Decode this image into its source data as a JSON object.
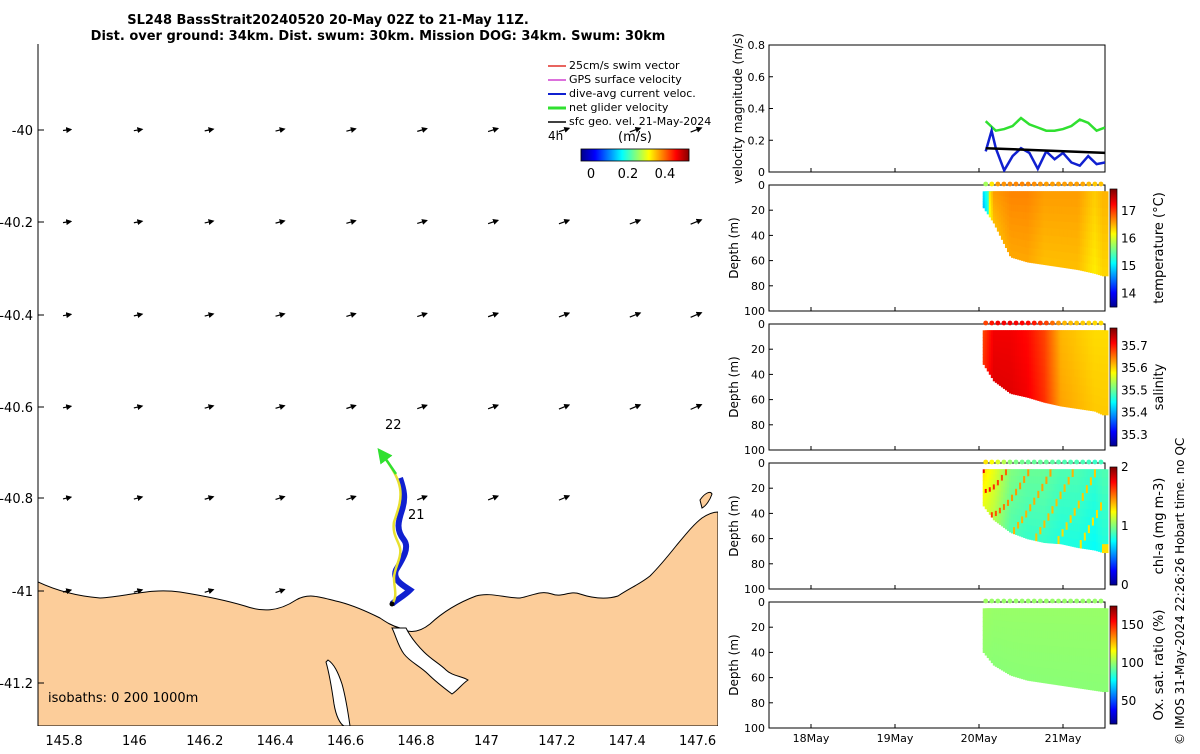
{
  "header": {
    "title_line1": "SL248 BassStrait20240520 20-May 02Z to 21-May 11Z.",
    "title_line2": "Dist. over ground: 34km. Dist. swum: 30km. Mission DOG: 34km. Swum: 30km"
  },
  "colors": {
    "land": "#fccd9a",
    "swim_vector": "#e0302a",
    "gps_velocity": "#d040d0",
    "dive_avg": "#1020d0",
    "net_glider": "#30e030",
    "sfc_geo": "#000000"
  },
  "map": {
    "lon_ticks": [
      "145.8",
      "146",
      "146.2",
      "146.4",
      "146.6",
      "146.8",
      "147",
      "147.2",
      "147.4",
      "147.6"
    ],
    "lat_ticks": [
      "-40",
      "-40.2",
      "-40.4",
      "-40.6",
      "-40.8",
      "-41",
      "-41.2"
    ],
    "isobaths_label": "isobaths: 0   200  1000m",
    "day_labels": [
      "22",
      "21"
    ],
    "legend": [
      {
        "key": "swim",
        "label": "25cm/s swim vector"
      },
      {
        "key": "gps",
        "label": "GPS surface velocity"
      },
      {
        "key": "dive",
        "label": "dive-avg current veloc."
      },
      {
        "key": "net",
        "label": "net glider velocity"
      },
      {
        "key": "sfc",
        "label": "sfc geo. vel. 21-May-2024"
      }
    ],
    "legend_time": "4h",
    "colorbar_title": "(m/s)",
    "colorbar_ticks": [
      "0",
      "0.2",
      "0.4"
    ]
  },
  "chart_data": [
    {
      "type": "line",
      "title": "velocity magnitude",
      "ylabel": "velocity magnitude (m/s)",
      "ylim": [
        0,
        0.8
      ],
      "yticks": [
        "0",
        "0.2",
        "0.4",
        "0.6",
        "0.8"
      ],
      "x_unit": "day (May 2024)",
      "xlim": [
        17.5,
        21.5
      ],
      "series": [
        {
          "name": "net glider velocity",
          "color": "#30e030",
          "x": [
            20.08,
            20.12,
            20.2,
            20.3,
            20.4,
            20.5,
            20.6,
            20.7,
            20.8,
            20.9,
            21.0,
            21.1,
            21.2,
            21.3,
            21.4,
            21.5
          ],
          "y": [
            0.32,
            0.3,
            0.26,
            0.27,
            0.29,
            0.34,
            0.3,
            0.28,
            0.26,
            0.26,
            0.27,
            0.29,
            0.33,
            0.31,
            0.26,
            0.28
          ]
        },
        {
          "name": "dive-avg current",
          "color": "#1020d0",
          "x": [
            20.08,
            20.15,
            20.2,
            20.3,
            20.4,
            20.5,
            20.6,
            20.7,
            20.8,
            20.9,
            21.0,
            21.1,
            21.2,
            21.3,
            21.4,
            21.5
          ],
          "y": [
            0.13,
            0.26,
            0.15,
            0.01,
            0.1,
            0.15,
            0.12,
            0.02,
            0.13,
            0.08,
            0.12,
            0.06,
            0.04,
            0.1,
            0.05,
            0.06
          ]
        },
        {
          "name": "sfc geo. vel.",
          "color": "#000000",
          "x": [
            20.08,
            21.5
          ],
          "y": [
            0.15,
            0.12
          ]
        }
      ]
    },
    {
      "type": "heatmap",
      "variable": "temperature",
      "ylabel": "Depth (m)",
      "colorbar_label": "temperature (°C)",
      "colorbar_ticks": [
        "14",
        "15",
        "16",
        "17"
      ],
      "crange": [
        13.5,
        17.8
      ],
      "ylim": [
        0,
        100
      ],
      "yticks": [
        "0",
        "20",
        "40",
        "60",
        "80",
        "100"
      ],
      "xlim": [
        17.5,
        21.5
      ],
      "x": [
        20.08,
        20.2,
        20.4,
        20.6,
        20.8,
        21.0,
        21.2,
        21.4,
        21.5
      ],
      "bottom_depth_m": [
        18,
        30,
        57,
        61,
        63,
        65,
        67,
        70,
        72
      ],
      "surface_values": [
        15.8,
        16.6,
        16.7,
        16.7,
        16.6,
        16.6,
        16.6,
        16.4,
        16.5
      ]
    },
    {
      "type": "heatmap",
      "variable": "salinity",
      "ylabel": "Depth (m)",
      "colorbar_label": "salinity",
      "colorbar_ticks": [
        "35.3",
        "35.4",
        "35.5",
        "35.6",
        "35.7"
      ],
      "crange": [
        35.25,
        35.78
      ],
      "ylim": [
        0,
        100
      ],
      "yticks": [
        "0",
        "20",
        "40",
        "60",
        "80",
        "100"
      ],
      "xlim": [
        17.5,
        21.5
      ],
      "x": [
        20.08,
        20.2,
        20.4,
        20.6,
        20.8,
        21.0,
        21.2,
        21.4,
        21.5
      ],
      "bottom_depth_m": [
        32,
        45,
        55,
        58,
        62,
        65,
        67,
        69,
        72
      ],
      "surface_values": [
        35.68,
        35.72,
        35.72,
        35.71,
        35.68,
        35.62,
        35.61,
        35.6,
        35.6
      ]
    },
    {
      "type": "heatmap",
      "variable": "chl-a",
      "ylabel": "Depth (m)",
      "colorbar_label": "chl-a (mg m-3)",
      "colorbar_ticks": [
        "0",
        "1",
        "2"
      ],
      "crange": [
        0,
        2
      ],
      "ylim": [
        0,
        100
      ],
      "yticks": [
        "0",
        "20",
        "40",
        "60",
        "80",
        "100"
      ],
      "xlim": [
        17.5,
        21.5
      ],
      "x": [
        20.08,
        20.2,
        20.4,
        20.6,
        20.8,
        21.0,
        21.2,
        21.4,
        21.5
      ],
      "bottom_depth_m": [
        34,
        45,
        55,
        60,
        63,
        64,
        67,
        69,
        71
      ],
      "surface_values": [
        1.3,
        1.2,
        1.0,
        0.95,
        0.95,
        0.9,
        0.9,
        0.85,
        0.9
      ]
    },
    {
      "type": "heatmap",
      "variable": "oxygen saturation",
      "ylabel": "Depth (m)",
      "colorbar_label": "Ox. sat. ratio (%)",
      "colorbar_ticks": [
        "50",
        "100",
        "150"
      ],
      "crange": [
        20,
        175
      ],
      "ylim": [
        0,
        100
      ],
      "yticks": [
        "0",
        "20",
        "40",
        "60",
        "80",
        "100"
      ],
      "xlim": [
        17.5,
        21.5
      ],
      "x": [
        20.08,
        20.2,
        20.4,
        20.6,
        20.8,
        21.0,
        21.2,
        21.4,
        21.5
      ],
      "bottom_depth_m": [
        40,
        50,
        58,
        62,
        64,
        66,
        68,
        70,
        71
      ],
      "surface_values": [
        102,
        101,
        101,
        101,
        101,
        101,
        101,
        101,
        101
      ]
    }
  ],
  "time_axis": {
    "ticks": [
      {
        "day": 18,
        "label": "18May"
      },
      {
        "day": 19,
        "label": "19May"
      },
      {
        "day": 20,
        "label": "20May"
      },
      {
        "day": 21,
        "label": "21May"
      }
    ]
  },
  "side_note": "© IMOS 31-May-2024 22:26:26 Hobart time. no QC"
}
